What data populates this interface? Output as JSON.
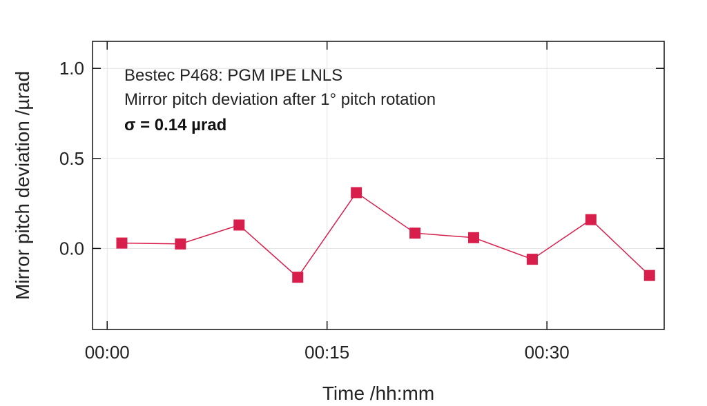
{
  "chart_data": {
    "type": "line",
    "annotation": [
      "Bestec P468: PGM IPE LNLS",
      "Mirror pitch deviation after 1° pitch rotation",
      "σ = 0.14 µrad"
    ],
    "xlabel": "Time /hh:mm",
    "ylabel": "Mirror pitch deviation /µrad",
    "x_tick_labels": [
      "00:00",
      "00:15",
      "00:30"
    ],
    "x_tick_values_minutes": [
      0,
      15,
      30
    ],
    "y_tick_labels": [
      "0.0",
      "0.5",
      "1.0"
    ],
    "y_tick_values": [
      0.0,
      0.5,
      1.0
    ],
    "xlim_minutes": [
      -1,
      38
    ],
    "ylim": [
      -0.45,
      1.15
    ],
    "grid": true,
    "series": [
      {
        "color": "#d81e4a",
        "marker": "square",
        "x_minutes": [
          1,
          5,
          9,
          13,
          17,
          21,
          25,
          29,
          33,
          37
        ],
        "y": [
          0.03,
          0.025,
          0.13,
          -0.16,
          0.31,
          0.085,
          0.06,
          -0.06,
          0.16,
          -0.15
        ]
      }
    ]
  }
}
